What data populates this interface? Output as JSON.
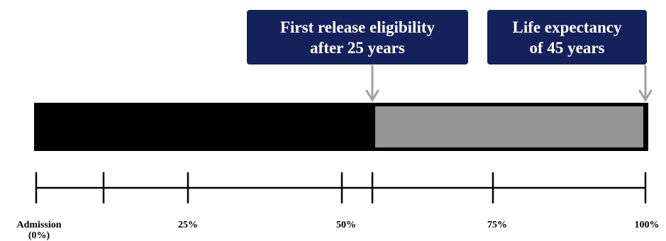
{
  "callouts": {
    "first_release": {
      "line1": "First release eligibility",
      "line2": "after 25 years"
    },
    "life_expectancy": {
      "line1": "Life expectancy",
      "line2": "of 45 years"
    }
  },
  "timeline": {
    "release_fraction": 0.556,
    "tick_labels": {
      "admission": "Admission (0%)",
      "p25": "25%",
      "p50": "50%",
      "p75": "75%",
      "p100": "100%"
    }
  },
  "colors": {
    "callout_bg": "#14215a",
    "served": "#000000",
    "remaining": "#959595",
    "arrow": "#a0a0a0"
  }
}
